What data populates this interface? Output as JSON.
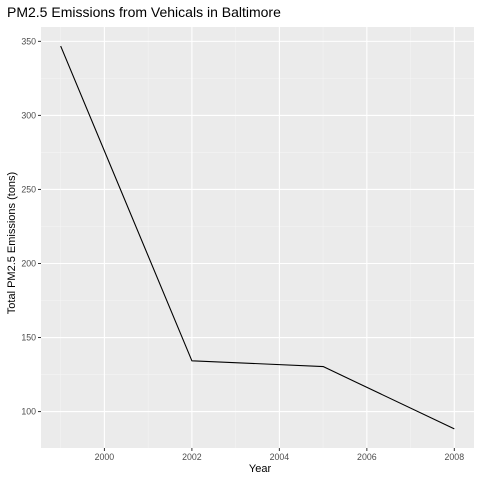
{
  "chart_data": {
    "type": "line",
    "title": "PM2.5 Emissions from Vehicals in Baltimore",
    "xlabel": "Year",
    "ylabel": "Total PM2.5 Emissions (tons)",
    "x": [
      1999,
      2002,
      2005,
      2008
    ],
    "series": [
      {
        "values": [
          346.8,
          134.3,
          130.4,
          88.3
        ]
      }
    ],
    "xlim": [
      1998.55,
      2008.45
    ],
    "ylim": [
      75.4,
      359.7
    ],
    "xticks": [
      2000,
      2002,
      2004,
      2006,
      2008
    ],
    "xtick_labels": [
      "2000",
      "2002",
      "2004",
      "2006",
      "2008"
    ],
    "yticks": [
      100,
      150,
      200,
      250,
      300,
      350
    ],
    "ytick_labels": [
      "100",
      "150",
      "200",
      "250",
      "300",
      "350"
    ],
    "grid": true,
    "legend": "none",
    "colors": {
      "panel_background": "#ebebeb",
      "grid_major": "#ffffff",
      "grid_minor": "#f5f5f5",
      "line": "#000000",
      "tick_text": "#4d4d4d",
      "tick_mark": "#333333"
    }
  }
}
